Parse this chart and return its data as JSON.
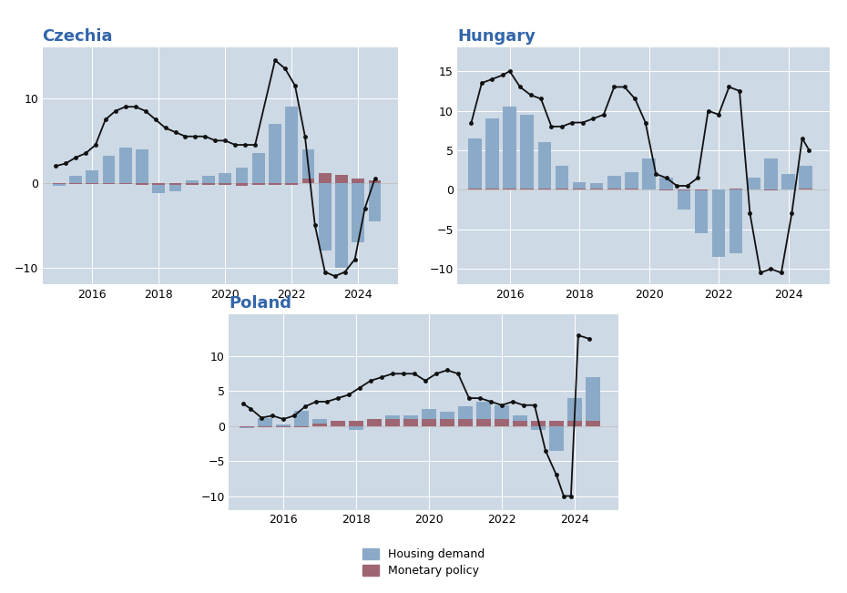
{
  "fig_bg": "#ffffff",
  "plot_bg": "#cdd9e5",
  "bar_color_demand": "#8baac8",
  "bar_color_monetary": "#9e6672",
  "line_color": "#111111",
  "title_color": "#3366aa",
  "grid_color": "#ffffff",
  "czechia": {
    "title": "Czechia",
    "bar_x": [
      2015.0,
      2015.5,
      2016.0,
      2016.5,
      2017.0,
      2017.5,
      2018.0,
      2018.5,
      2019.0,
      2019.5,
      2020.0,
      2020.5,
      2021.0,
      2021.5,
      2022.0,
      2022.5,
      2023.0,
      2023.5,
      2024.0,
      2024.5
    ],
    "demand": [
      -0.3,
      0.8,
      1.5,
      3.2,
      4.2,
      4.0,
      -1.2,
      -1.0,
      0.3,
      0.8,
      1.2,
      1.8,
      3.5,
      7.0,
      9.0,
      4.0,
      -8.0,
      -10.0,
      -7.0,
      -4.5
    ],
    "monetary": [
      -0.1,
      -0.1,
      -0.1,
      -0.1,
      -0.1,
      -0.2,
      -0.2,
      -0.2,
      -0.2,
      -0.2,
      -0.2,
      -0.3,
      -0.2,
      -0.2,
      -0.2,
      0.5,
      1.2,
      1.0,
      0.5,
      0.3
    ],
    "line_x": [
      2014.9,
      2015.2,
      2015.5,
      2015.8,
      2016.1,
      2016.4,
      2016.7,
      2017.0,
      2017.3,
      2017.6,
      2017.9,
      2018.2,
      2018.5,
      2018.8,
      2019.1,
      2019.4,
      2019.7,
      2020.0,
      2020.3,
      2020.6,
      2020.9,
      2021.5,
      2021.8,
      2022.1,
      2022.4,
      2022.7,
      2023.0,
      2023.3,
      2023.6,
      2023.9,
      2024.2,
      2024.5
    ],
    "line_y": [
      2.0,
      2.3,
      3.0,
      3.5,
      4.5,
      7.5,
      8.5,
      9.0,
      9.0,
      8.5,
      7.5,
      6.5,
      6.0,
      5.5,
      5.5,
      5.5,
      5.0,
      5.0,
      4.5,
      4.5,
      4.5,
      14.5,
      13.5,
      11.5,
      5.5,
      -5.0,
      -10.5,
      -11.0,
      -10.5,
      -9.0,
      -3.0,
      0.5
    ],
    "ylim": [
      -12,
      16
    ],
    "yticks": [
      -10,
      0,
      10
    ],
    "xlim": [
      2014.5,
      2025.2
    ],
    "xticks": [
      2016,
      2018,
      2020,
      2022,
      2024
    ]
  },
  "hungary": {
    "title": "Hungary",
    "bar_x": [
      2015.0,
      2015.5,
      2016.0,
      2016.5,
      2017.0,
      2017.5,
      2018.0,
      2018.5,
      2019.0,
      2019.5,
      2020.0,
      2020.5,
      2021.0,
      2021.5,
      2022.0,
      2022.5,
      2023.0,
      2023.5,
      2024.0,
      2024.5
    ],
    "demand": [
      6.5,
      9.0,
      10.5,
      9.5,
      6.0,
      3.0,
      1.0,
      0.8,
      1.8,
      2.2,
      4.0,
      1.5,
      -2.5,
      -5.5,
      -8.5,
      -8.0,
      1.5,
      4.0,
      2.0,
      3.0
    ],
    "monetary": [
      0.2,
      0.2,
      0.1,
      0.1,
      0.1,
      0.1,
      0.1,
      0.1,
      0.1,
      0.1,
      0.0,
      -0.1,
      -0.1,
      -0.1,
      0.0,
      0.1,
      0.0,
      -0.1,
      0.0,
      0.1
    ],
    "line_x": [
      2014.9,
      2015.2,
      2015.5,
      2015.8,
      2016.0,
      2016.3,
      2016.6,
      2016.9,
      2017.2,
      2017.5,
      2017.8,
      2018.1,
      2018.4,
      2018.7,
      2019.0,
      2019.3,
      2019.6,
      2019.9,
      2020.2,
      2020.5,
      2020.8,
      2021.1,
      2021.4,
      2021.7,
      2022.0,
      2022.3,
      2022.6,
      2022.9,
      2023.2,
      2023.5,
      2023.8,
      2024.1,
      2024.4,
      2024.6
    ],
    "line_y": [
      8.5,
      13.5,
      14.0,
      14.5,
      15.0,
      13.0,
      12.0,
      11.5,
      8.0,
      8.0,
      8.5,
      8.5,
      9.0,
      9.5,
      13.0,
      13.0,
      11.5,
      8.5,
      2.0,
      1.5,
      0.5,
      0.5,
      1.5,
      10.0,
      9.5,
      13.0,
      12.5,
      -3.0,
      -10.5,
      -10.0,
      -10.5,
      -3.0,
      6.5,
      5.0
    ],
    "ylim": [
      -12,
      18
    ],
    "yticks": [
      -10,
      -5,
      0,
      5,
      10,
      15
    ],
    "xlim": [
      2014.5,
      2025.2
    ],
    "xticks": [
      2016,
      2018,
      2020,
      2022,
      2024
    ]
  },
  "poland": {
    "title": "Poland",
    "bar_x": [
      2015.0,
      2015.5,
      2016.0,
      2016.5,
      2017.0,
      2017.5,
      2018.0,
      2018.5,
      2019.0,
      2019.5,
      2020.0,
      2020.5,
      2021.0,
      2021.5,
      2022.0,
      2022.5,
      2023.0,
      2023.5,
      2024.0,
      2024.5
    ],
    "demand": [
      -0.3,
      1.2,
      0.2,
      2.2,
      1.0,
      0.3,
      -0.5,
      0.7,
      1.5,
      1.5,
      2.5,
      2.0,
      2.8,
      3.5,
      3.0,
      1.5,
      -0.5,
      -3.5,
      4.0,
      7.0
    ],
    "monetary": [
      -0.2,
      -0.1,
      -0.1,
      -0.1,
      0.3,
      0.8,
      0.8,
      1.0,
      1.0,
      1.0,
      1.0,
      1.0,
      1.0,
      1.0,
      1.0,
      0.8,
      0.8,
      0.8,
      0.8,
      0.7
    ],
    "line_x": [
      2014.9,
      2015.1,
      2015.4,
      2015.7,
      2016.0,
      2016.3,
      2016.6,
      2016.9,
      2017.2,
      2017.5,
      2017.8,
      2018.1,
      2018.4,
      2018.7,
      2019.0,
      2019.3,
      2019.6,
      2019.9,
      2020.2,
      2020.5,
      2020.8,
      2021.1,
      2021.4,
      2021.7,
      2022.0,
      2022.3,
      2022.6,
      2022.9,
      2023.2,
      2023.5,
      2023.7,
      2023.9,
      2024.1,
      2024.4
    ],
    "line_y": [
      3.2,
      2.5,
      1.2,
      1.5,
      1.0,
      1.5,
      2.8,
      3.5,
      3.5,
      4.0,
      4.5,
      5.5,
      6.5,
      7.0,
      7.5,
      7.5,
      7.5,
      6.5,
      7.5,
      8.0,
      7.5,
      4.0,
      4.0,
      3.5,
      3.0,
      3.5,
      3.0,
      3.0,
      -3.5,
      -7.0,
      -10.0,
      -10.0,
      13.0,
      12.5
    ],
    "ylim": [
      -12,
      16
    ],
    "yticks": [
      -10,
      -5,
      0,
      5,
      10
    ],
    "xlim": [
      2014.5,
      2025.2
    ],
    "xticks": [
      2016,
      2018,
      2020,
      2022,
      2024
    ]
  },
  "legend_labels": [
    "Housing demand",
    "Monetary policy"
  ]
}
